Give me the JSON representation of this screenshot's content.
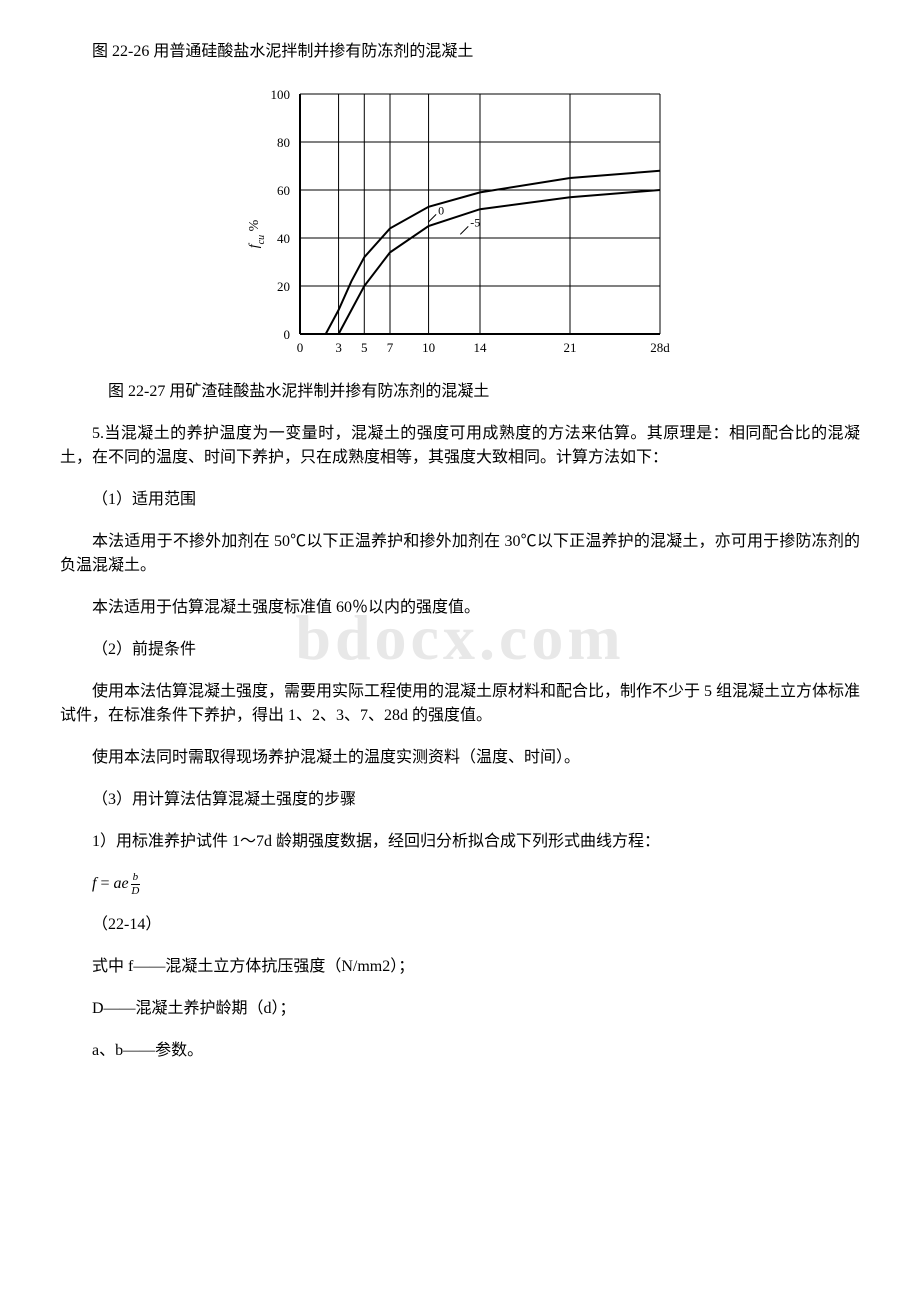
{
  "watermark": "bdocx.com",
  "caption1": "图 22-26 用普通硅酸盐水泥拌制并掺有防冻剂的混凝土",
  "caption2": "图 22-27 用矿渣硅酸盐水泥拌制并掺有防冻剂的混凝土",
  "chart": {
    "type": "line",
    "x_ticks": [
      0,
      3,
      5,
      7,
      10,
      14,
      21,
      "28d"
    ],
    "x_positions": [
      0,
      3,
      5,
      7,
      10,
      14,
      21,
      28
    ],
    "y_ticks": [
      0,
      20,
      40,
      60,
      80,
      100
    ],
    "y_label": "fcu %",
    "y_label_fontsize": 14,
    "tick_fontsize": 13,
    "xlim": [
      0,
      28
    ],
    "ylim": [
      0,
      100
    ],
    "grid_x": [
      3,
      5,
      7,
      10,
      14,
      21,
      28
    ],
    "series": [
      {
        "label": "0",
        "label_x": 9.5,
        "label_y": 49,
        "color": "#000000",
        "line_width": 2,
        "points": [
          [
            2.0,
            0
          ],
          [
            3,
            10
          ],
          [
            4,
            22
          ],
          [
            5,
            32
          ],
          [
            7,
            44
          ],
          [
            10,
            53
          ],
          [
            14,
            59
          ],
          [
            21,
            65
          ],
          [
            28,
            68
          ]
        ]
      },
      {
        "label": "-5",
        "label_x": 12,
        "label_y": 44,
        "color": "#000000",
        "line_width": 2,
        "points": [
          [
            3.0,
            0
          ],
          [
            4,
            10
          ],
          [
            5,
            20
          ],
          [
            7,
            34
          ],
          [
            10,
            45
          ],
          [
            14,
            52
          ],
          [
            21,
            57
          ],
          [
            28,
            60
          ]
        ]
      }
    ],
    "background_color": "#ffffff",
    "axis_color": "#000000",
    "axis_width": 2,
    "grid_width": 1
  },
  "p1": "5.当混凝土的养护温度为一变量时，混凝土的强度可用成熟度的方法来估算。其原理是：相同配合比的混凝土，在不同的温度、时间下养护，只在成熟度相等，其强度大致相同。计算方法如下：",
  "p2": "（1）适用范围",
  "p3": "本法适用于不掺外加剂在 50℃以下正温养护和掺外加剂在 30℃以下正温养护的混凝土，亦可用于掺防冻剂的负温混凝土。",
  "p4": "本法适用于估算混凝土强度标准值 60％以内的强度值。",
  "p5": "（2）前提条件",
  "p6": "使用本法估算混凝土强度，需要用实际工程使用的混凝土原材料和配合比，制作不少于 5 组混凝土立方体标准试件，在标准条件下养护，得出 1、2、3、7、28d 的强度值。",
  "p7": "使用本法同时需取得现场养护混凝土的温度实测资料（温度、时间）。",
  "p8": "（3）用计算法估算混凝土强度的步骤",
  "p9": "1）用标准养护试件 1～7d 龄期强度数据，经回归分析拟合成下列形式曲线方程：",
  "formula": {
    "lhs": "f",
    "eq": " = ",
    "a": "ae",
    "frac_num": "b",
    "frac_den": "D"
  },
  "eqnum": "（22-14）",
  "p10": "式中 f——混凝土立方体抗压强度（N/mm2）；",
  "p11": "D——混凝土养护龄期（d）；",
  "p12": "a、b——参数。"
}
